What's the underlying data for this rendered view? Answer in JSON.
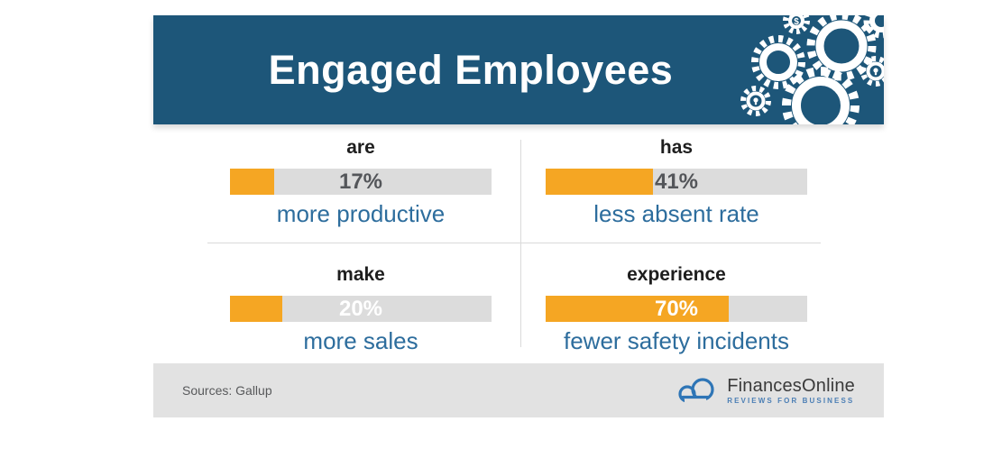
{
  "header": {
    "title": "Engaged Employees",
    "decoration": "gears-with-dollar-and-lightbulb-icons"
  },
  "chart_data": {
    "type": "bar",
    "title": "Engaged Employees",
    "orientation": "horizontal",
    "unit": "%",
    "xlim": [
      0,
      100
    ],
    "grid": "off",
    "stats": [
      {
        "verb": "are",
        "value": 17,
        "value_label": "17%",
        "caption": "more productive",
        "value_color": "#54565a"
      },
      {
        "verb": "has",
        "value": 41,
        "value_label": "41%",
        "caption": "less absent rate",
        "value_color": "#54565a"
      },
      {
        "verb": "make",
        "value": 20,
        "value_label": "20%",
        "caption": "more sales",
        "value_color": "#ffffff"
      },
      {
        "verb": "experience",
        "value": 70,
        "value_label": "70%",
        "caption": "fewer safety incidents",
        "value_color": "#ffffff"
      }
    ],
    "source": "Sources: Gallup"
  },
  "footer": {
    "source": "Sources: Gallup",
    "brand": {
      "name": "FinancesOnline",
      "tagline": "REVIEWS FOR BUSINESS"
    }
  },
  "colors": {
    "banner_blue": "#1d5679",
    "accent_orange": "#f5a623",
    "bar_track_gray": "#dcdcdc",
    "caption_blue": "#2d6d9d",
    "footer_gray": "#e2e2e2",
    "brand_blue": "#2e75b6"
  }
}
